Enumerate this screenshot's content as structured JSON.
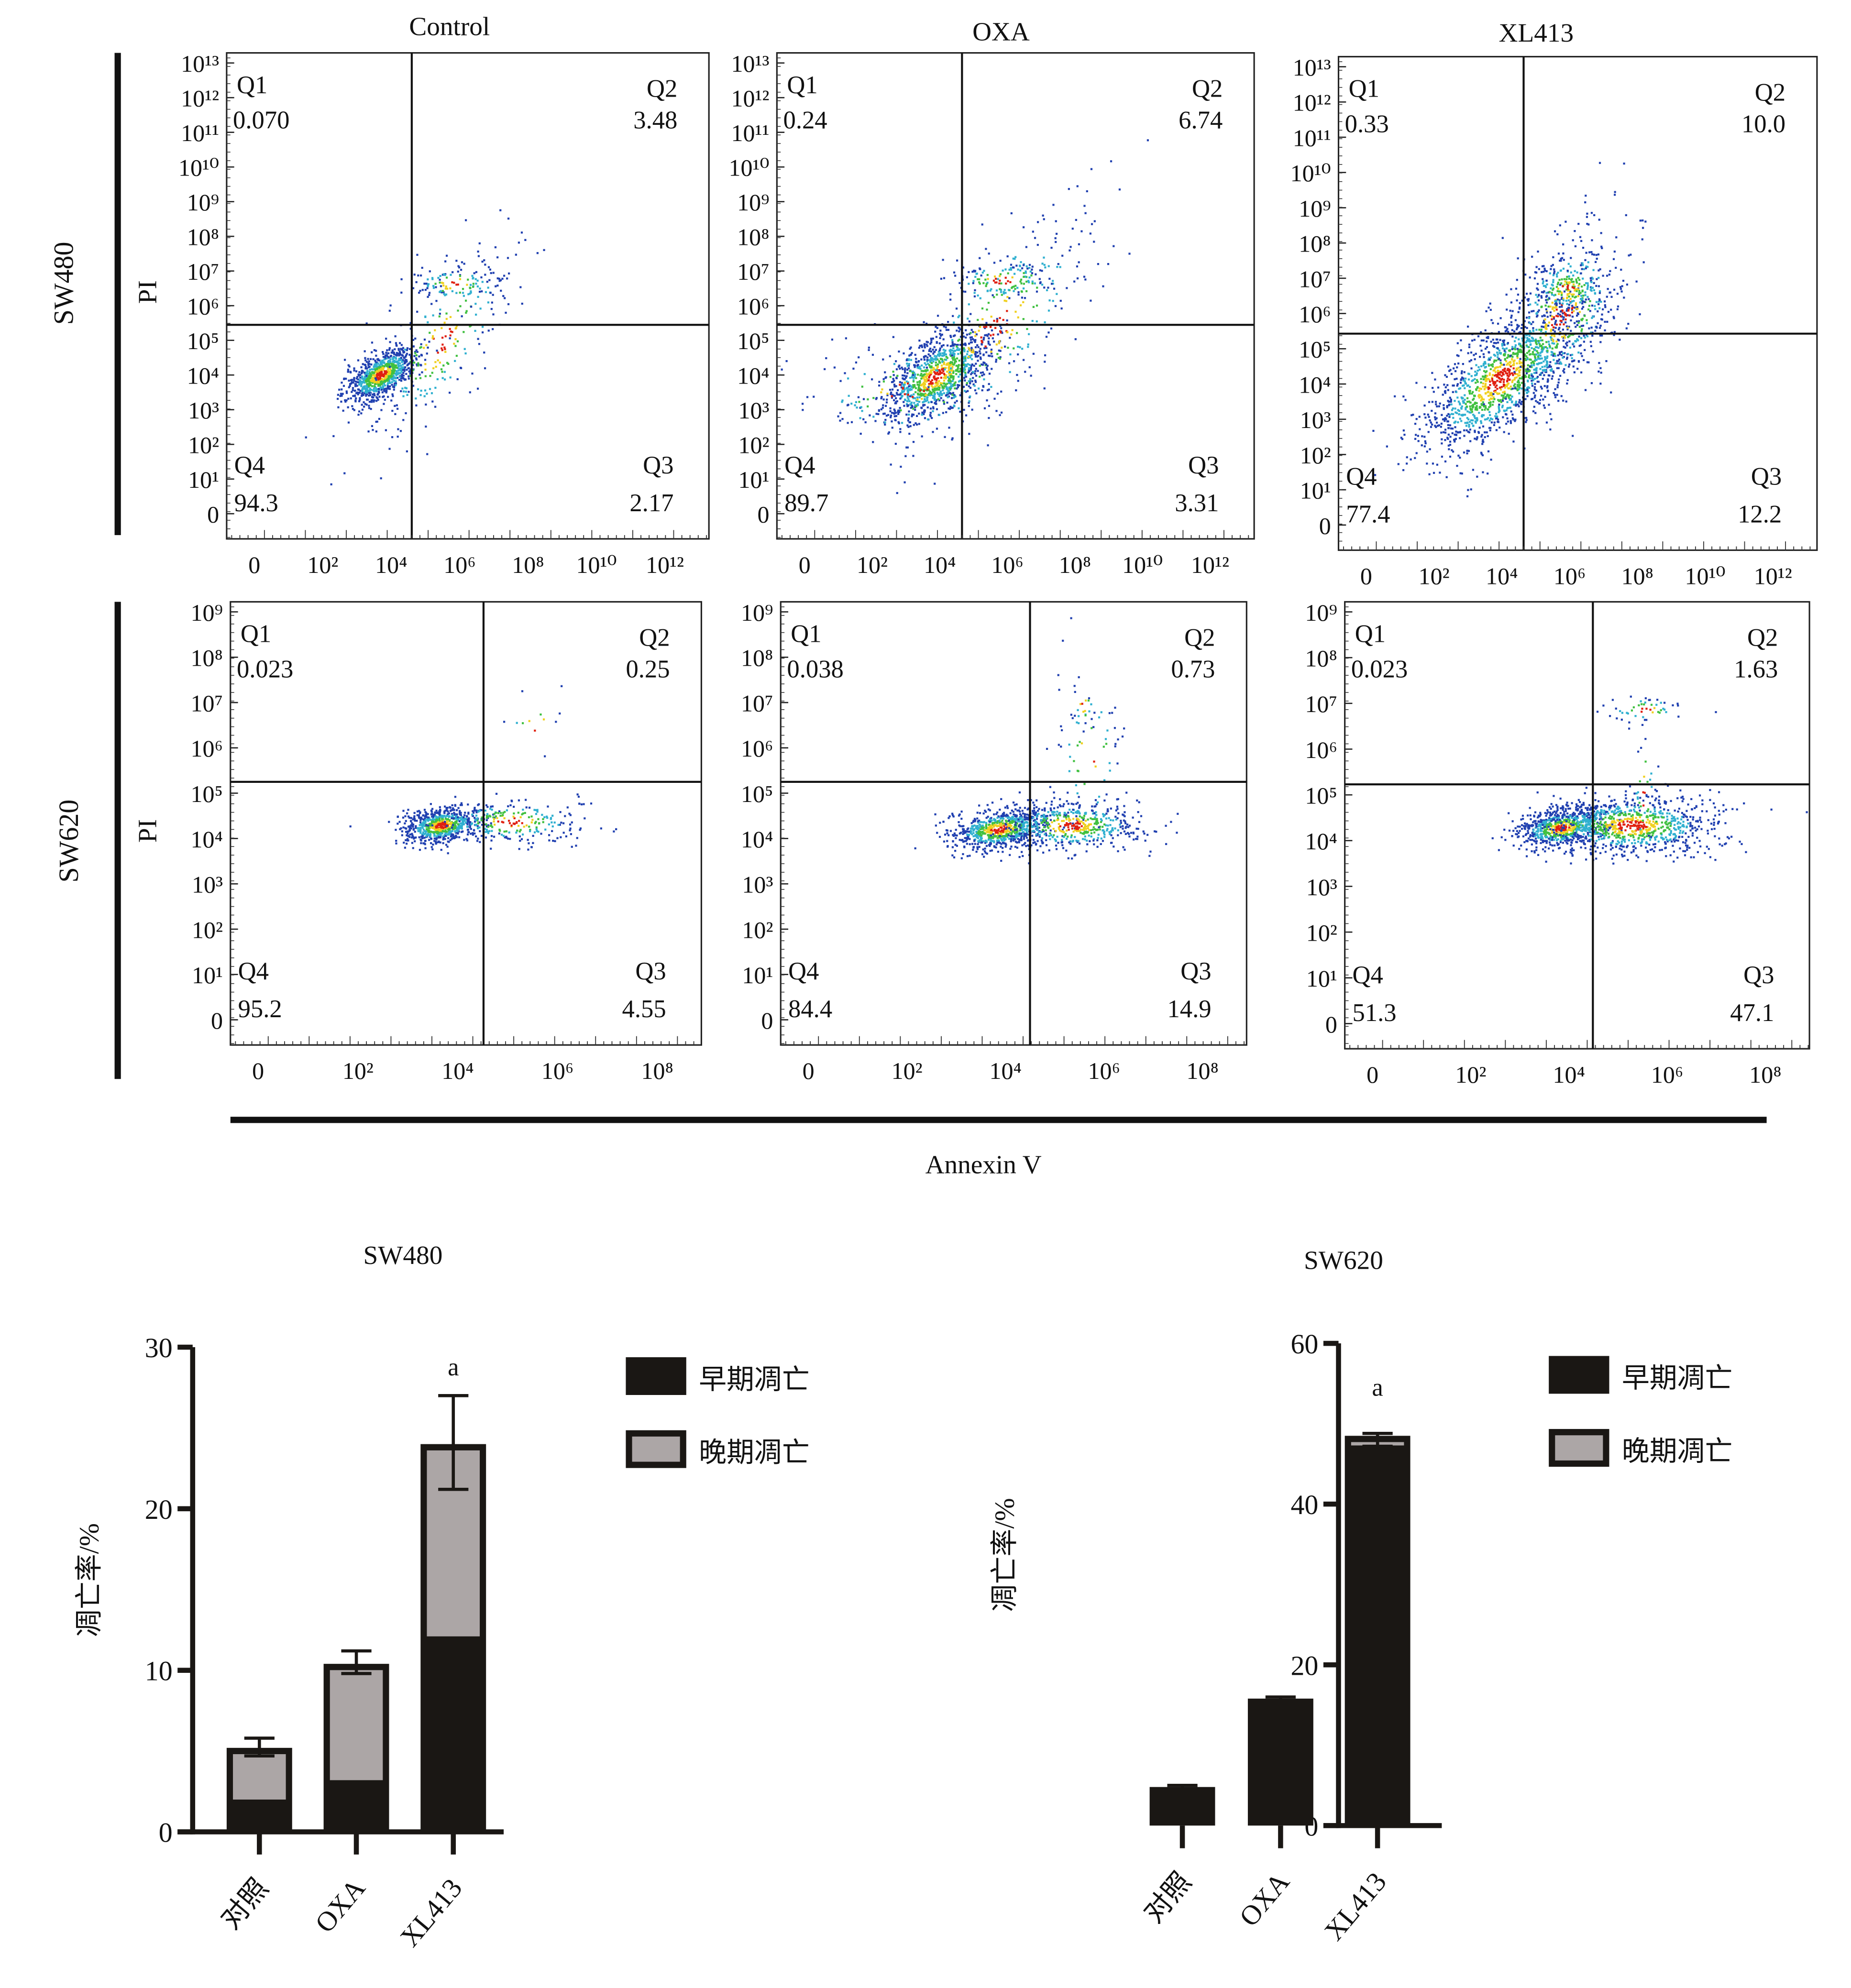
{
  "figure": {
    "row_labels": [
      "SW480",
      "SW620"
    ],
    "y_axis_label": "PI",
    "x_axis_label": "Annexin V",
    "column_titles": [
      "Control",
      "OXA",
      "XL413"
    ],
    "quadrant_names": [
      "Q1",
      "Q2",
      "Q3",
      "Q4"
    ],
    "row1_y_ticks": [
      "10¹³",
      "10¹²",
      "10¹¹",
      "10¹⁰",
      "10⁹",
      "10⁸",
      "10⁷",
      "10⁶",
      "10⁵",
      "10⁴",
      "10³",
      "10²",
      "10¹",
      "0"
    ],
    "row1_x_ticks": [
      "0",
      "10²",
      "10⁴",
      "10⁶",
      "10⁸",
      "10¹⁰",
      "10¹²"
    ],
    "row2_y_ticks": [
      "10⁹",
      "10⁸",
      "10⁷",
      "10⁶",
      "10⁵",
      "10⁴",
      "10³",
      "10²",
      "10¹",
      "0"
    ],
    "row2_x_ticks": [
      "0",
      "10²",
      "10⁴",
      "10⁶",
      "10⁸"
    ],
    "panels": [
      {
        "cell_line": "SW480",
        "group": "Control",
        "q1": "0.070",
        "q2": "3.48",
        "q3": "2.17",
        "q4": "94.3"
      },
      {
        "cell_line": "SW480",
        "group": "OXA",
        "q1": "0.24",
        "q2": "6.74",
        "q3": "3.31",
        "q4": "89.7"
      },
      {
        "cell_line": "SW480",
        "group": "XL413",
        "q1": "0.33",
        "q2": "10.0",
        "q3": "12.2",
        "q4": "77.4"
      },
      {
        "cell_line": "SW620",
        "group": "Control",
        "q1": "0.023",
        "q2": "0.25",
        "q3": "4.55",
        "q4": "95.2"
      },
      {
        "cell_line": "SW620",
        "group": "OXA",
        "q1": "0.038",
        "q2": "0.73",
        "q3": "14.9",
        "q4": "84.4"
      },
      {
        "cell_line": "SW620",
        "group": "XL413",
        "q1": "0.023",
        "q2": "1.63",
        "q3": "47.1",
        "q4": "51.3"
      }
    ]
  },
  "chart_data": [
    {
      "type": "bar",
      "title": "SW480",
      "ylabel": "凋亡率/%",
      "xlabel": "",
      "categories": [
        "对照",
        "OXA",
        "XL413"
      ],
      "ylim": [
        0,
        30
      ],
      "yticks": [
        "0",
        "10",
        "20",
        "30"
      ],
      "stacked": true,
      "series": [
        {
          "name": "早期凋亡",
          "values": [
            2.0,
            3.2,
            12.1
          ],
          "color": "#1a1714"
        },
        {
          "name": "晚期凋亡",
          "values": [
            3.2,
            7.2,
            11.9
          ],
          "color": "#aca6a6"
        }
      ],
      "error_upper": [
        5.8,
        11.2,
        27.0
      ],
      "error_lower": [
        4.7,
        9.8,
        21.2
      ],
      "annotations": [
        {
          "category": "XL413",
          "text": "a"
        }
      ],
      "legend": "right"
    },
    {
      "type": "bar",
      "title": "SW620",
      "ylabel": "凋亡率/%",
      "xlabel": "",
      "categories": [
        "对照",
        "OXA",
        "XL413"
      ],
      "ylim": [
        0,
        60
      ],
      "yticks": [
        "0",
        "20",
        "40",
        "60"
      ],
      "stacked": true,
      "series": [
        {
          "name": "早期凋亡",
          "values": [
            4.8,
            15.8,
            47.3
          ],
          "color": "#1a1714"
        },
        {
          "name": "晚期凋亡",
          "values": [
            0.0,
            0.0,
            1.2
          ],
          "color": "#aca6a6"
        }
      ],
      "error_upper": [
        5.0,
        16.0,
        48.8
      ],
      "error_lower": [
        4.6,
        15.6,
        47.2
      ],
      "annotations": [
        {
          "category": "XL413",
          "text": "a"
        }
      ],
      "legend": "right"
    }
  ]
}
